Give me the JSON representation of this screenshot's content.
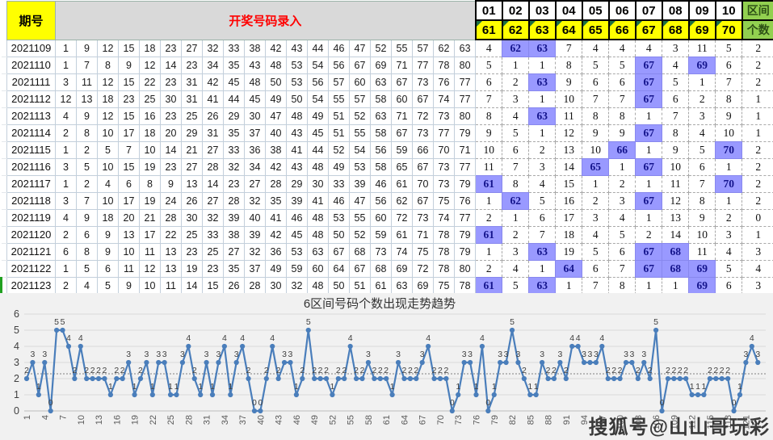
{
  "header": {
    "period_label": "期号",
    "entry_label": "开奖号码录入",
    "range_label": "区间",
    "count_label": "个数",
    "top_numbers": [
      "01",
      "02",
      "03",
      "04",
      "05",
      "06",
      "07",
      "08",
      "09",
      "10"
    ],
    "bottom_numbers": [
      "61",
      "62",
      "63",
      "64",
      "65",
      "66",
      "67",
      "68",
      "69",
      "70"
    ]
  },
  "colors": {
    "yellow": "#FFFF00",
    "green": "#92D050",
    "header_red_text": "#FF0000",
    "highlight_purple": "#9999FF",
    "line_blue": "#4a7ebb"
  },
  "rows": [
    {
      "period": "2021109",
      "numbers": [
        1,
        9,
        12,
        15,
        18,
        23,
        27,
        32,
        33,
        38,
        42,
        43,
        44,
        46,
        47,
        52,
        55,
        57,
        62,
        63
      ],
      "zone": [
        4,
        62,
        63,
        7,
        4,
        4,
        4,
        3,
        11,
        5
      ],
      "count": 2
    },
    {
      "period": "2021110",
      "numbers": [
        1,
        7,
        8,
        9,
        12,
        14,
        23,
        34,
        35,
        43,
        48,
        53,
        54,
        56,
        67,
        69,
        71,
        77,
        78,
        80
      ],
      "zone": [
        5,
        1,
        1,
        8,
        5,
        5,
        67,
        4,
        69,
        6
      ],
      "count": 2
    },
    {
      "period": "2021111",
      "numbers": [
        3,
        11,
        12,
        15,
        22,
        23,
        31,
        42,
        45,
        48,
        50,
        53,
        56,
        57,
        60,
        63,
        67,
        73,
        76,
        77
      ],
      "zone": [
        6,
        2,
        63,
        9,
        6,
        6,
        67,
        5,
        1,
        7
      ],
      "count": 2
    },
    {
      "period": "2021112",
      "numbers": [
        12,
        13,
        18,
        23,
        25,
        30,
        31,
        41,
        44,
        45,
        49,
        50,
        54,
        55,
        57,
        58,
        60,
        67,
        74,
        77
      ],
      "zone": [
        7,
        3,
        1,
        10,
        7,
        7,
        67,
        6,
        2,
        8
      ],
      "count": 1
    },
    {
      "period": "2021113",
      "numbers": [
        4,
        9,
        12,
        15,
        16,
        23,
        25,
        26,
        29,
        30,
        47,
        48,
        49,
        51,
        52,
        63,
        71,
        72,
        73,
        80
      ],
      "zone": [
        8,
        4,
        63,
        11,
        8,
        8,
        1,
        7,
        3,
        9
      ],
      "count": 1
    },
    {
      "period": "2021114",
      "numbers": [
        2,
        8,
        10,
        17,
        18,
        20,
        29,
        31,
        35,
        37,
        40,
        43,
        45,
        51,
        55,
        58,
        67,
        73,
        77,
        79
      ],
      "zone": [
        9,
        5,
        1,
        12,
        9,
        9,
        67,
        8,
        4,
        10
      ],
      "count": 1
    },
    {
      "period": "2021115",
      "numbers": [
        1,
        2,
        5,
        7,
        10,
        14,
        21,
        27,
        33,
        36,
        38,
        41,
        44,
        52,
        54,
        56,
        59,
        66,
        70,
        71
      ],
      "zone": [
        10,
        6,
        2,
        13,
        10,
        66,
        1,
        9,
        5,
        70
      ],
      "count": 2
    },
    {
      "period": "2021116",
      "numbers": [
        3,
        5,
        10,
        15,
        19,
        23,
        27,
        28,
        32,
        34,
        42,
        43,
        48,
        49,
        53,
        58,
        65,
        67,
        73,
        77
      ],
      "zone": [
        11,
        7,
        3,
        14,
        65,
        1,
        67,
        10,
        6,
        1
      ],
      "count": 2
    },
    {
      "period": "2021117",
      "numbers": [
        1,
        2,
        4,
        6,
        8,
        9,
        13,
        14,
        23,
        27,
        28,
        29,
        30,
        33,
        39,
        46,
        61,
        70,
        73,
        79
      ],
      "zone": [
        61,
        8,
        4,
        15,
        1,
        2,
        1,
        11,
        7,
        70
      ],
      "count": 2
    },
    {
      "period": "2021118",
      "numbers": [
        3,
        7,
        10,
        17,
        19,
        24,
        26,
        27,
        28,
        32,
        35,
        39,
        41,
        46,
        47,
        56,
        62,
        67,
        75,
        76
      ],
      "zone": [
        1,
        62,
        5,
        16,
        2,
        3,
        67,
        12,
        8,
        1
      ],
      "count": 2
    },
    {
      "period": "2021119",
      "numbers": [
        4,
        9,
        18,
        20,
        21,
        28,
        30,
        32,
        39,
        40,
        41,
        46,
        48,
        53,
        55,
        60,
        72,
        73,
        74,
        77
      ],
      "zone": [
        2,
        1,
        6,
        17,
        3,
        4,
        1,
        13,
        9,
        2
      ],
      "count": 0
    },
    {
      "period": "2021120",
      "numbers": [
        2,
        6,
        9,
        13,
        17,
        22,
        25,
        33,
        38,
        39,
        42,
        45,
        48,
        50,
        52,
        59,
        61,
        71,
        78,
        79
      ],
      "zone": [
        61,
        2,
        7,
        18,
        4,
        5,
        2,
        14,
        10,
        3
      ],
      "count": 1
    },
    {
      "period": "2021121",
      "numbers": [
        6,
        8,
        9,
        10,
        11,
        13,
        23,
        25,
        27,
        32,
        36,
        53,
        63,
        67,
        68,
        73,
        74,
        75,
        78,
        79
      ],
      "zone": [
        1,
        3,
        63,
        19,
        5,
        6,
        67,
        68,
        11,
        4
      ],
      "count": 3
    },
    {
      "period": "2021122",
      "numbers": [
        1,
        5,
        6,
        11,
        12,
        13,
        19,
        23,
        35,
        37,
        49,
        59,
        60,
        64,
        67,
        68,
        69,
        72,
        78,
        80
      ],
      "zone": [
        2,
        4,
        1,
        64,
        6,
        7,
        67,
        68,
        69,
        5
      ],
      "count": 4
    },
    {
      "period": "2021123",
      "numbers": [
        2,
        4,
        5,
        9,
        10,
        11,
        14,
        15,
        26,
        28,
        30,
        32,
        48,
        50,
        51,
        61,
        63,
        69,
        75,
        78
      ],
      "zone": [
        61,
        5,
        63,
        1,
        7,
        8,
        1,
        1,
        69,
        6
      ],
      "count": 3
    }
  ],
  "chart_data": {
    "type": "line",
    "title": "6区间号码个数出现走势趋势",
    "xlabel": "",
    "ylabel": "",
    "ylim": [
      0,
      6
    ],
    "x_start": 1,
    "x_tick_step": 3,
    "grid": true,
    "mean_line": 2.3,
    "values": [
      2,
      3,
      1,
      3,
      0,
      5,
      5,
      4,
      2,
      4,
      2,
      2,
      2,
      2,
      1,
      2,
      2,
      3,
      1,
      2,
      3,
      1,
      3,
      3,
      1,
      1,
      3,
      4,
      2,
      1,
      3,
      1,
      3,
      4,
      1,
      3,
      4,
      2,
      0,
      0,
      2,
      4,
      2,
      3,
      3,
      1,
      2,
      5,
      2,
      2,
      2,
      1,
      2,
      2,
      4,
      2,
      2,
      3,
      2,
      2,
      2,
      1,
      3,
      2,
      2,
      2,
      3,
      4,
      2,
      2,
      2,
      0,
      1,
      3,
      3,
      1,
      4,
      0,
      1,
      3,
      3,
      5,
      3,
      2,
      1,
      1,
      3,
      2,
      2,
      3,
      2,
      4,
      4,
      3,
      3,
      3,
      4,
      2,
      2,
      2,
      3,
      3,
      2,
      3,
      2,
      5,
      0,
      2,
      2,
      2,
      2,
      1,
      1,
      1,
      2,
      2,
      2,
      2,
      0,
      1,
      3,
      4,
      3
    ]
  },
  "watermark": "搜狐号@山山哥玩彩"
}
